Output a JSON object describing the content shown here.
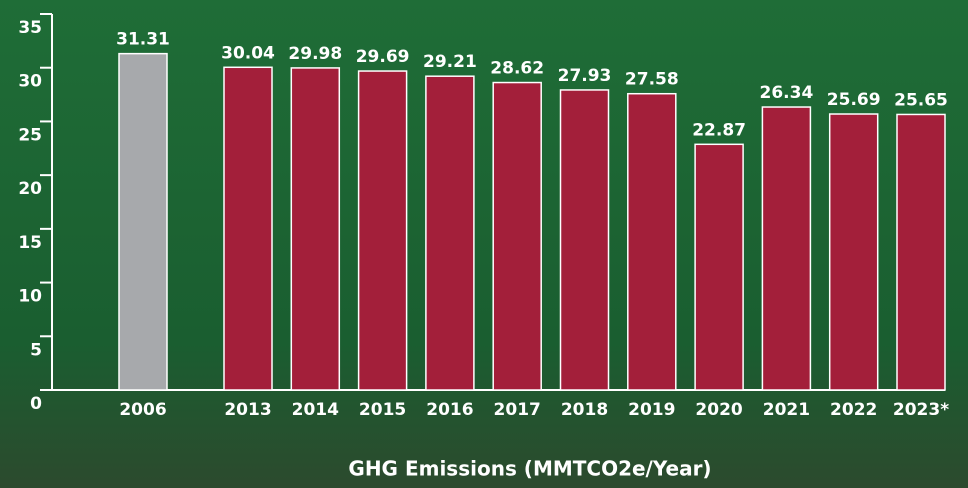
{
  "chart_data": {
    "type": "bar",
    "title": "GHG Emissions (MMTCO2e/Year)",
    "categories": [
      "2006",
      "2013",
      "2014",
      "2015",
      "2016",
      "2017",
      "2018",
      "2019",
      "2020",
      "2021",
      "2022",
      "2023*"
    ],
    "values": [
      31.31,
      30.04,
      29.98,
      29.69,
      29.21,
      28.62,
      27.93,
      27.58,
      22.87,
      26.34,
      25.69,
      25.65
    ],
    "colors": [
      "#a7a9ac",
      "#a31f3a",
      "#a31f3a",
      "#a31f3a",
      "#a31f3a",
      "#a31f3a",
      "#a31f3a",
      "#a31f3a",
      "#a31f3a",
      "#a31f3a",
      "#a31f3a",
      "#a31f3a"
    ],
    "ylim": [
      0,
      35
    ],
    "yticks": [
      0,
      5,
      10,
      15,
      20,
      25,
      30,
      35
    ]
  }
}
